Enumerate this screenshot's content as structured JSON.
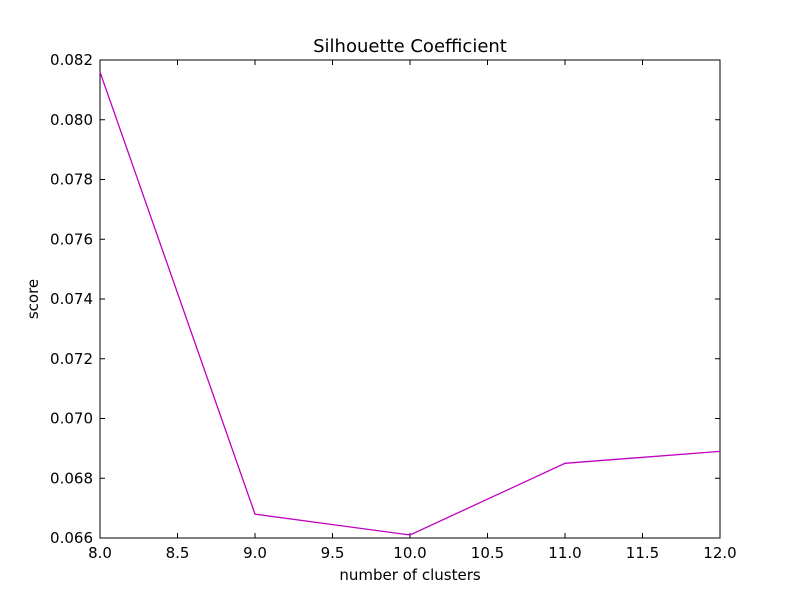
{
  "chart_data": {
    "type": "line",
    "title": "Silhouette Coefficient",
    "xlabel": "number of clusters",
    "ylabel": "score",
    "xlim": [
      8.0,
      12.0
    ],
    "ylim": [
      0.066,
      0.082
    ],
    "x_ticks": [
      "8.0",
      "8.5",
      "9.0",
      "9.5",
      "10.0",
      "10.5",
      "11.0",
      "11.5",
      "12.0"
    ],
    "y_ticks": [
      "0.066",
      "0.068",
      "0.070",
      "0.072",
      "0.074",
      "0.076",
      "0.078",
      "0.080",
      "0.082"
    ],
    "grid": false,
    "series": [
      {
        "color": "#bf00bf",
        "x": [
          8,
          9,
          10,
          11,
          12
        ],
        "y": [
          0.0816,
          0.0668,
          0.0661,
          0.0685,
          0.0689
        ]
      }
    ]
  }
}
